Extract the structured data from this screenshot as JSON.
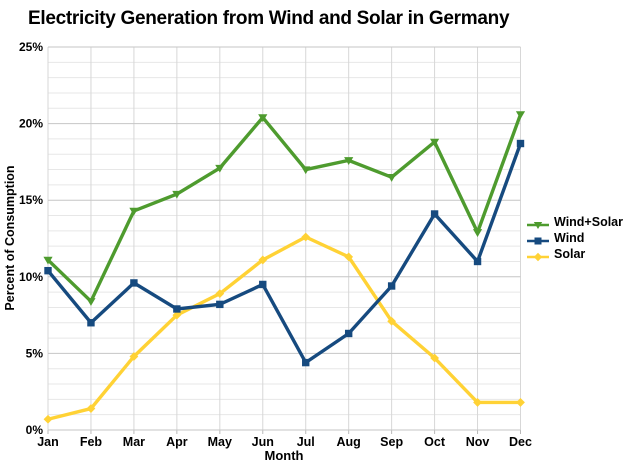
{
  "title": "Electricity Generation from Wind and Solar in Germany",
  "axes": {
    "y_label": "Percent of Consumption",
    "x_label": "Month",
    "y_tick_labels": [
      "0%",
      "5%",
      "10%",
      "15%",
      "20%",
      "25%"
    ]
  },
  "chart_data": {
    "type": "line",
    "title": "Electricity Generation from Wind and Solar in Germany",
    "xlabel": "Month",
    "ylabel": "Percent of Consumption",
    "categories": [
      "Jan",
      "Feb",
      "Mar",
      "Apr",
      "May",
      "Jun",
      "Jul",
      "Aug",
      "Sep",
      "Oct",
      "Nov",
      "Dec"
    ],
    "ylim": [
      0,
      25
    ],
    "y_major_step": 5,
    "y_minor_step": 1,
    "grid": true,
    "legend_position": "right",
    "draw_order": [
      0,
      2,
      1
    ],
    "series": [
      {
        "name": "Wind+Solar",
        "color": "#4e9b2e",
        "marker": "triangle-down",
        "values": [
          11.1,
          8.4,
          14.3,
          15.4,
          17.1,
          20.4,
          17.0,
          17.6,
          16.5,
          18.8,
          12.9,
          20.6
        ]
      },
      {
        "name": "Wind",
        "color": "#164a7f",
        "marker": "square",
        "values": [
          10.4,
          7.0,
          9.6,
          7.9,
          8.2,
          9.5,
          4.4,
          6.3,
          9.4,
          14.1,
          11.0,
          18.7
        ]
      },
      {
        "name": "Solar",
        "color": "#ffd235",
        "marker": "diamond",
        "values": [
          0.7,
          1.4,
          4.8,
          7.5,
          8.9,
          11.1,
          12.6,
          11.3,
          7.1,
          4.7,
          1.8,
          1.8
        ]
      }
    ]
  },
  "colors": {
    "grid_minor": "#e7e7e7",
    "grid_major": "#c6c6c6",
    "grid_vertical": "#d7d7d7",
    "tick": "#b9b9b9"
  }
}
